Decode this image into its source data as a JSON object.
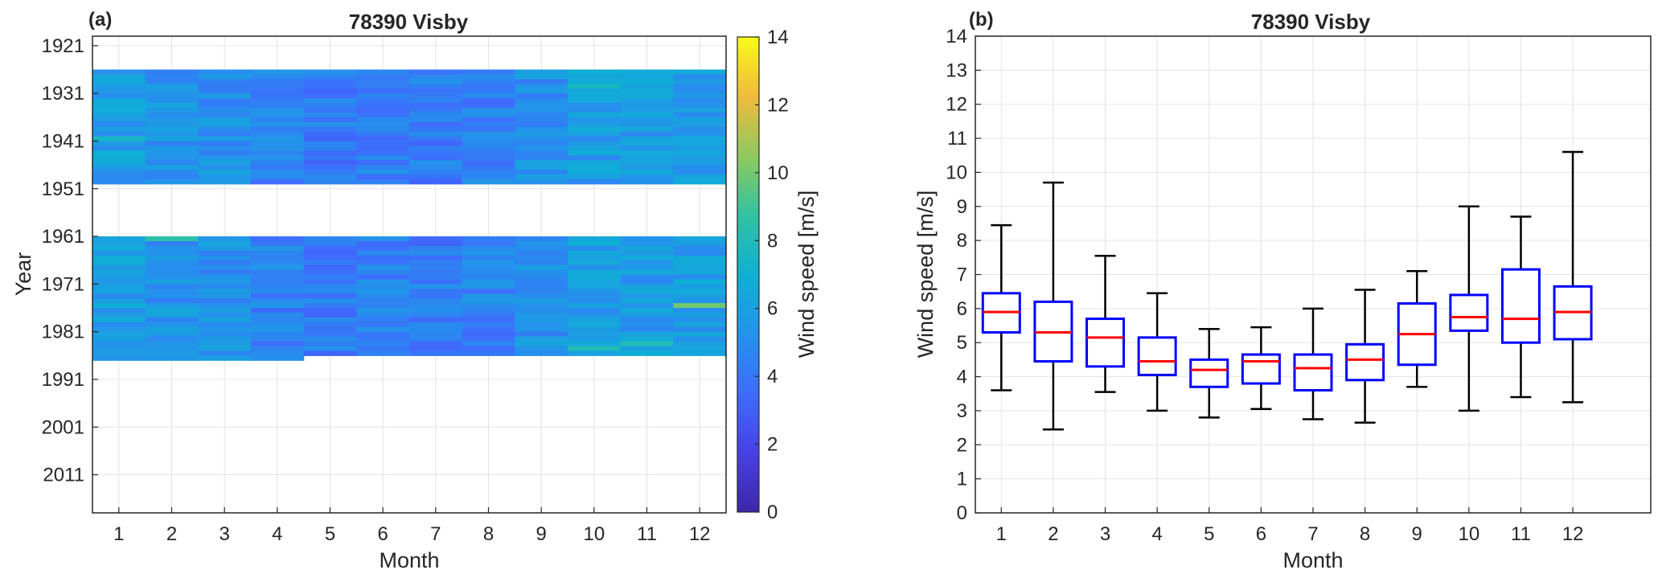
{
  "panels": {
    "a": {
      "label": "(a)",
      "title": "78390 Visby"
    },
    "b": {
      "label": "(b)",
      "title": "78390 Visby"
    }
  },
  "colorbar": {
    "label": "Wind speed [m/s]",
    "min": 0,
    "max": 14,
    "ticks": [
      "0",
      "2",
      "4",
      "6",
      "8",
      "10",
      "12",
      "14"
    ]
  },
  "chart_data": [
    {
      "type": "heatmap",
      "title": "78390 Visby",
      "xlabel": "Month",
      "ylabel": "Year",
      "x_ticks": [
        "1",
        "2",
        "3",
        "4",
        "5",
        "6",
        "7",
        "8",
        "9",
        "10",
        "11",
        "12"
      ],
      "y_ticks": [
        "1921",
        "1931",
        "1941",
        "1951",
        "1961",
        "1971",
        "1981",
        "1991",
        "2001",
        "2011"
      ],
      "ylim": [
        1919,
        2019
      ],
      "y_reversed": true,
      "color_range": [
        0,
        14
      ],
      "colormap": "parula",
      "grid": true,
      "data_periods": [
        {
          "start_year": 1926,
          "end_year": 1949,
          "months_end": 12
        },
        {
          "start_year": 1961,
          "end_year": 1986,
          "months_end": 12,
          "last_year_months_end": 4
        }
      ],
      "monthly_mean": [
        5.9,
        5.3,
        5.15,
        4.45,
        4.2,
        4.45,
        4.25,
        4.5,
        5.25,
        5.75,
        5.7,
        5.9
      ],
      "highlights": [
        {
          "month": 2,
          "year": 1961,
          "value": 8.5
        },
        {
          "month": 12,
          "year": 1975,
          "value": 10
        },
        {
          "month": 10,
          "year": 1984,
          "value": 8
        },
        {
          "month": 11,
          "year": 1983,
          "value": 8
        },
        {
          "month": 1,
          "year": 1940,
          "value": 7.5
        },
        {
          "month": 10,
          "year": 1929,
          "value": 7.5
        }
      ]
    },
    {
      "type": "box",
      "title": "78390 Visby",
      "xlabel": "Month",
      "ylabel": "Wind speed [m/s]",
      "categories": [
        "1",
        "2",
        "3",
        "4",
        "5",
        "6",
        "7",
        "8",
        "9",
        "10",
        "11",
        "12"
      ],
      "y_ticks": [
        "0",
        "1",
        "2",
        "3",
        "4",
        "5",
        "6",
        "7",
        "8",
        "9",
        "10",
        "11",
        "12",
        "13",
        "14"
      ],
      "ylim": [
        0,
        14
      ],
      "xlim": [
        0.5,
        13.5
      ],
      "grid": true,
      "box_color": "#0000ff",
      "median_color": "#ff0000",
      "boxes": [
        {
          "whisker_low": 3.6,
          "q1": 5.3,
          "median": 5.9,
          "q3": 6.45,
          "whisker_high": 8.45
        },
        {
          "whisker_low": 2.45,
          "q1": 4.45,
          "median": 5.3,
          "q3": 6.2,
          "whisker_high": 9.7
        },
        {
          "whisker_low": 3.55,
          "q1": 4.3,
          "median": 5.15,
          "q3": 5.7,
          "whisker_high": 7.55
        },
        {
          "whisker_low": 3.0,
          "q1": 4.05,
          "median": 4.45,
          "q3": 5.15,
          "whisker_high": 6.45
        },
        {
          "whisker_low": 2.8,
          "q1": 3.7,
          "median": 4.2,
          "q3": 4.5,
          "whisker_high": 5.4
        },
        {
          "whisker_low": 3.05,
          "q1": 3.8,
          "median": 4.45,
          "q3": 4.65,
          "whisker_high": 5.45
        },
        {
          "whisker_low": 2.75,
          "q1": 3.6,
          "median": 4.25,
          "q3": 4.65,
          "whisker_high": 6.0
        },
        {
          "whisker_low": 2.65,
          "q1": 3.9,
          "median": 4.5,
          "q3": 4.95,
          "whisker_high": 6.55
        },
        {
          "whisker_low": 3.7,
          "q1": 4.35,
          "median": 5.25,
          "q3": 6.15,
          "whisker_high": 7.1
        },
        {
          "whisker_low": 3.0,
          "q1": 5.35,
          "median": 5.75,
          "q3": 6.4,
          "whisker_high": 9.0
        },
        {
          "whisker_low": 3.4,
          "q1": 5.0,
          "median": 5.7,
          "q3": 7.15,
          "whisker_high": 8.7
        },
        {
          "whisker_low": 3.25,
          "q1": 5.1,
          "median": 5.9,
          "q3": 6.65,
          "whisker_high": 10.6
        }
      ]
    }
  ]
}
